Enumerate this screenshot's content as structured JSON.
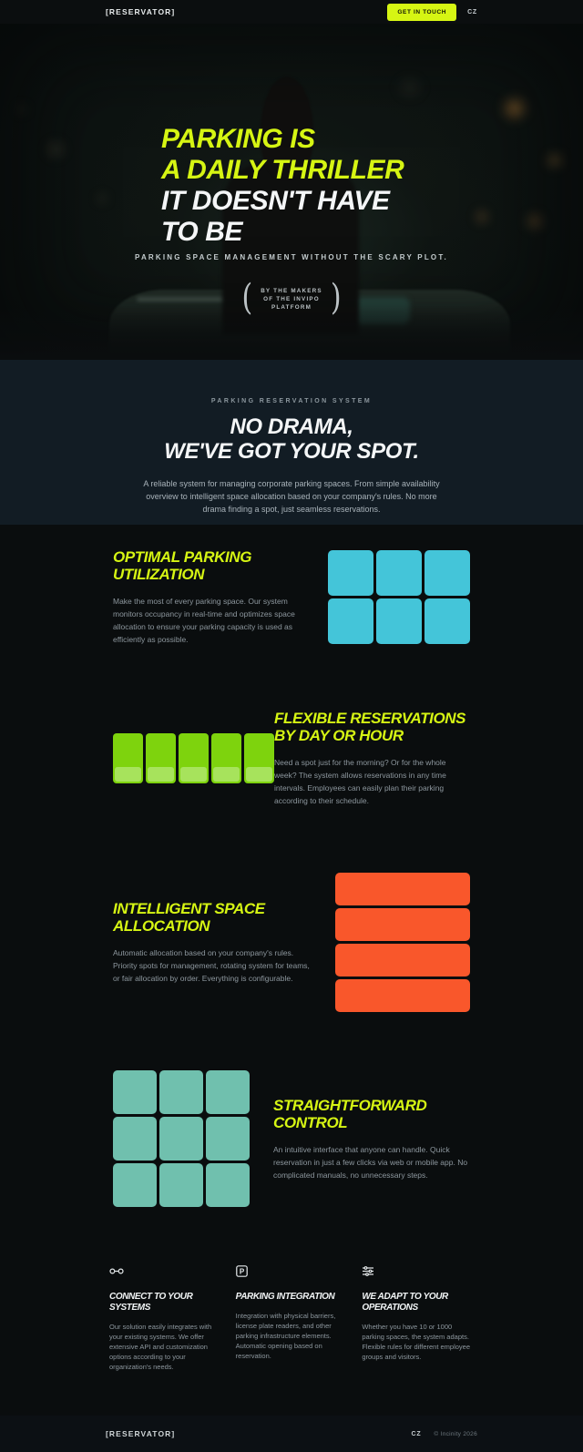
{
  "colors": {
    "accent": "#d6f513",
    "cyan": "#44c5d9",
    "green": "#7ed30d",
    "green-light": "#a7e35c",
    "orange": "#f9572b",
    "teal": "#70c0ae"
  },
  "header": {
    "logo": "[RESERVATOR]",
    "cta_label": "GET IN TOUCH",
    "lang": "CZ"
  },
  "hero": {
    "title_accent_line1": "PARKING IS",
    "title_accent_line2": "A DAILY THRILLER",
    "title_white_line1": "IT DOESN'T HAVE",
    "title_white_line2": "TO BE",
    "tagline": "PARKING SPACE MANAGEMENT WITHOUT THE SCARY PLOT.",
    "badge_line1": "BY THE MAKERS",
    "badge_line2": "OF THE INVIPO",
    "badge_line3": "PLATFORM",
    "laurel_left": "(",
    "laurel_right": ")"
  },
  "intro": {
    "eyebrow": "PARKING RESERVATION SYSTEM",
    "title_line1": "NO DRAMA,",
    "title_line2": "WE'VE GOT YOUR SPOT.",
    "body": "A reliable system for managing corporate parking spaces. From simple availability overview to intelligent space allocation based on your company's rules. No more drama finding a spot, just seamless reservations."
  },
  "features": [
    {
      "title_line1": "OPTIMAL PARKING",
      "title_line2": "UTILIZATION",
      "body": "Make the most of every parking space. Our system monitors occupancy in real-time and optimizes space allocation to ensure your parking capacity is used as efficiently as possible.",
      "graphic": "cyan-grid",
      "tile_count": 6
    },
    {
      "title_line1": "FLEXIBLE RESERVATIONS",
      "title_line2": "BY DAY OR HOUR",
      "body": "Need a spot just for the morning? Or for the whole week? The system allows reservations in any time intervals. Employees can easily plan their parking according to their schedule.",
      "graphic": "green-bars",
      "tile_count": 5
    },
    {
      "title_line1": "INTELLIGENT SPACE",
      "title_line2": "ALLOCATION",
      "body": "Automatic allocation based on your company's rules. Priority spots for management, rotating system for teams, or fair allocation by order. Everything is configurable.",
      "graphic": "orange-bars",
      "tile_count": 4
    },
    {
      "title_line1": "STRAIGHTFORWARD",
      "title_line2": "CONTROL",
      "body": "An intuitive interface that anyone can handle. Quick reservation in just a few clicks via web or mobile app. No complicated manuals, no unnecessary steps.",
      "graphic": "teal-grid",
      "tile_count": 9
    }
  ],
  "capabilities": [
    {
      "icon": "link-icon",
      "title": "CONNECT TO YOUR SYSTEMS",
      "body": "Our solution easily integrates with your existing systems. We offer extensive API and customization options according to your organization's needs."
    },
    {
      "icon": "parking-icon",
      "title": "PARKING INTEGRATION",
      "body": "Integration with physical barriers, license plate readers, and other parking infrastructure elements. Automatic opening based on reservation."
    },
    {
      "icon": "sliders-icon",
      "title": "WE ADAPT TO YOUR OPERATIONS",
      "body": "Whether you have 10 or 1000 parking spaces, the system adapts. Flexible rules for different employee groups and visitors."
    }
  ],
  "footer": {
    "logo": "[RESERVATOR]",
    "lang": "CZ",
    "copyright": "© Incinity 2026"
  }
}
